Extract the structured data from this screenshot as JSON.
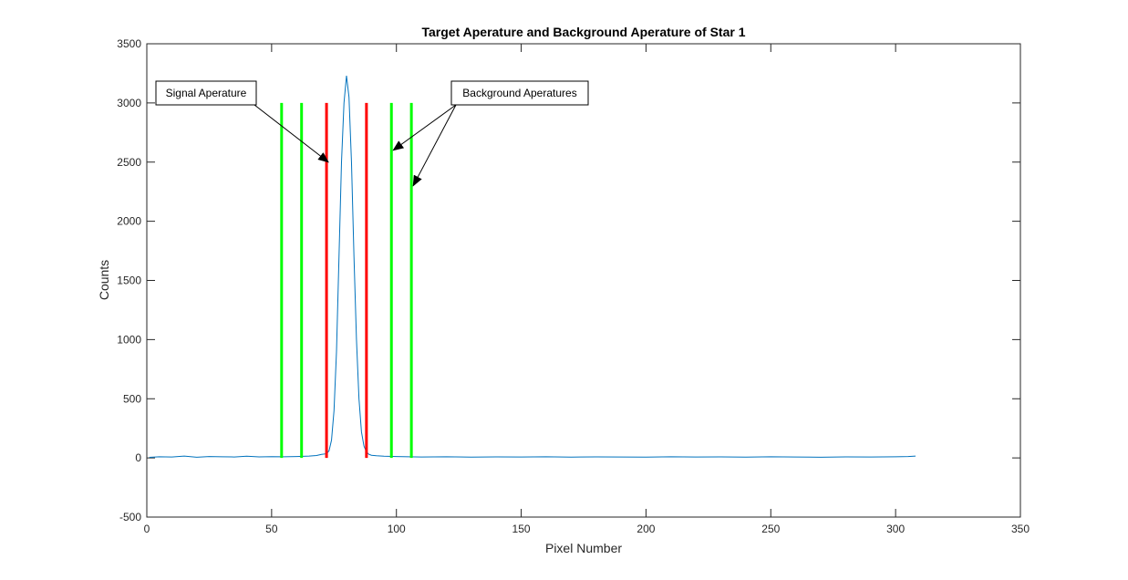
{
  "chart_data": {
    "type": "line",
    "title": "Target Aperature and Background Aperature of Star 1",
    "xlabel": "Pixel Number",
    "ylabel": "Counts",
    "xlim": [
      0,
      350
    ],
    "ylim": [
      -500,
      3500
    ],
    "xticks": [
      0,
      50,
      100,
      150,
      200,
      250,
      300,
      350
    ],
    "yticks": [
      -500,
      0,
      500,
      1000,
      1500,
      2000,
      2500,
      3000,
      3500
    ],
    "grid": false,
    "colors": {
      "profile": "#0072BD",
      "signal_aperture": "#FF0000",
      "background_aperture": "#00FF00",
      "axes": "#262626"
    },
    "series": [
      {
        "x": [
          1,
          5,
          10,
          15,
          20,
          25,
          30,
          35,
          40,
          45,
          50,
          55,
          60,
          65,
          68,
          70,
          72,
          73,
          74,
          75,
          76,
          77,
          78,
          79,
          80,
          81,
          82,
          83,
          84,
          85,
          86,
          87,
          88,
          89,
          90,
          92,
          95,
          100,
          105,
          110,
          120,
          130,
          140,
          150,
          160,
          170,
          180,
          190,
          200,
          210,
          220,
          230,
          240,
          250,
          260,
          270,
          280,
          290,
          300,
          305,
          308
        ],
        "y": [
          5,
          10,
          8,
          15,
          6,
          12,
          10,
          8,
          14,
          9,
          11,
          10,
          12,
          15,
          20,
          30,
          35,
          60,
          150,
          400,
          900,
          1700,
          2500,
          3000,
          3230,
          3050,
          2500,
          1700,
          1000,
          500,
          220,
          100,
          50,
          30,
          22,
          18,
          14,
          12,
          10,
          8,
          10,
          7,
          9,
          8,
          10,
          7,
          9,
          8,
          7,
          10,
          8,
          9,
          7,
          10,
          8,
          6,
          9,
          8,
          10,
          12,
          15
        ]
      }
    ],
    "signal_apertures": [
      {
        "x": 72,
        "y_range": [
          0,
          3000
        ]
      },
      {
        "x": 88,
        "y_range": [
          0,
          3000
        ]
      }
    ],
    "background_apertures": [
      {
        "x": 54,
        "y_range": [
          0,
          3000
        ]
      },
      {
        "x": 62,
        "y_range": [
          0,
          3000
        ]
      },
      {
        "x": 98,
        "y_range": [
          0,
          3000
        ]
      },
      {
        "x": 106,
        "y_range": [
          0,
          3000
        ]
      }
    ],
    "annotations": [
      {
        "text": "Signal Aperature",
        "arrow_targets": [
          {
            "x": 72,
            "y": 2500
          }
        ]
      },
      {
        "text": "Background Aperatures",
        "arrow_targets": [
          {
            "x": 98,
            "y": 2600
          },
          {
            "x": 106,
            "y": 2300
          }
        ]
      }
    ]
  }
}
